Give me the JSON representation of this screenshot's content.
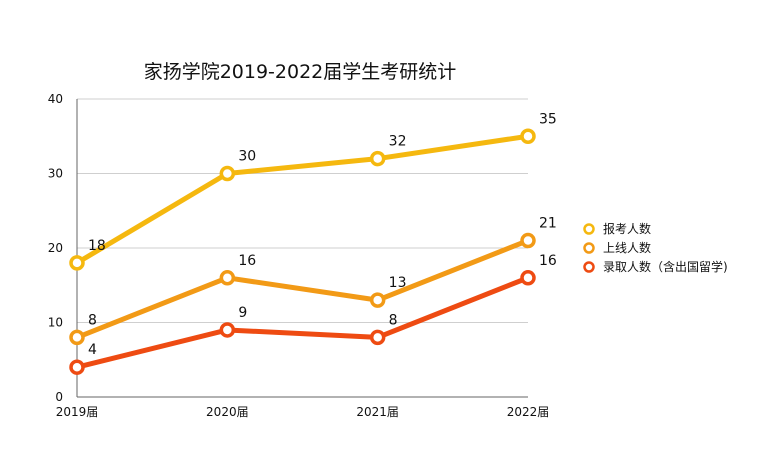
{
  "chart_data": {
    "type": "line",
    "title": "家扬学院2019-2022届学生考研统计",
    "xlabel": "",
    "ylabel": "",
    "categories": [
      "2019届",
      "2020届",
      "2021届",
      "2022届"
    ],
    "ylim": [
      0,
      40
    ],
    "yticks": [
      0,
      10,
      20,
      30,
      40
    ],
    "grid": true,
    "legend_position": "right",
    "series": [
      {
        "name": "报考人数",
        "values": [
          18,
          30,
          32,
          35
        ],
        "color": "#F5B80F"
      },
      {
        "name": "上线人数",
        "values": [
          8,
          16,
          13,
          21
        ],
        "color": "#F29A16"
      },
      {
        "name": "录取人数（含出国留学)",
        "values": [
          4,
          9,
          8,
          16
        ],
        "color": "#EE4B12"
      }
    ]
  }
}
